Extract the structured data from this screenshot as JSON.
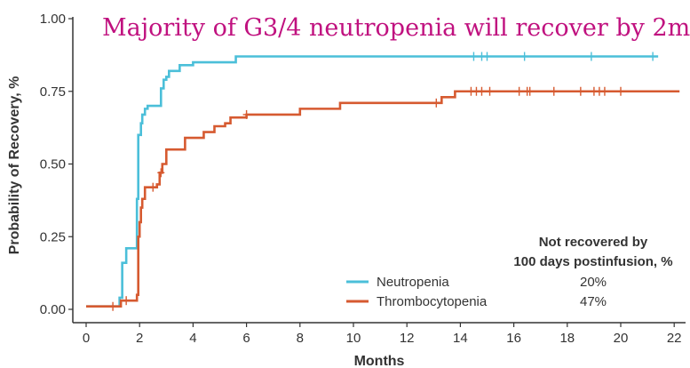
{
  "chart_data": {
    "type": "line",
    "step": true,
    "title": "Majority of G3/4 neutropenia will recover by 2m",
    "xlabel": "Months",
    "ylabel": "Probability of Recovery, %",
    "xlim": [
      0,
      22.5
    ],
    "ylim": [
      0,
      1.0
    ],
    "xticks": [
      0,
      2,
      4,
      6,
      8,
      10,
      12,
      14,
      16,
      18,
      20,
      22
    ],
    "yticks": [
      "0.00",
      "0.25",
      "0.50",
      "0.75",
      "1.00"
    ],
    "grid": false,
    "legend": {
      "position": "bottom-right",
      "header_line1": "Not recovered by",
      "header_line2": "100 days postinfusion, %"
    },
    "series": [
      {
        "name": "Neutropenia",
        "not_recovered_label": "20%",
        "color": "#4bbfd9",
        "points": [
          [
            0,
            0.01
          ],
          [
            1.2,
            0.01
          ],
          [
            1.25,
            0.04
          ],
          [
            1.35,
            0.16
          ],
          [
            1.5,
            0.21
          ],
          [
            1.85,
            0.21
          ],
          [
            1.9,
            0.38
          ],
          [
            1.95,
            0.6
          ],
          [
            2.05,
            0.64
          ],
          [
            2.1,
            0.67
          ],
          [
            2.2,
            0.69
          ],
          [
            2.3,
            0.7
          ],
          [
            2.8,
            0.76
          ],
          [
            2.9,
            0.79
          ],
          [
            3.0,
            0.8
          ],
          [
            3.1,
            0.82
          ],
          [
            3.5,
            0.84
          ],
          [
            4.0,
            0.85
          ],
          [
            5.6,
            0.87
          ],
          [
            21.4,
            0.87
          ]
        ],
        "censor": [
          14.5,
          14.8,
          15.0,
          16.4,
          18.9,
          21.2
        ]
      },
      {
        "name": "Thrombocytopenia",
        "not_recovered_label": "47%",
        "color": "#d65a30",
        "points": [
          [
            0,
            0.01
          ],
          [
            1.2,
            0.01
          ],
          [
            1.3,
            0.03
          ],
          [
            1.8,
            0.03
          ],
          [
            1.9,
            0.05
          ],
          [
            1.95,
            0.25
          ],
          [
            2.0,
            0.3
          ],
          [
            2.05,
            0.35
          ],
          [
            2.1,
            0.38
          ],
          [
            2.2,
            0.42
          ],
          [
            2.55,
            0.42
          ],
          [
            2.65,
            0.43
          ],
          [
            2.75,
            0.47
          ],
          [
            2.85,
            0.5
          ],
          [
            3.0,
            0.55
          ],
          [
            3.7,
            0.59
          ],
          [
            4.4,
            0.61
          ],
          [
            4.8,
            0.63
          ],
          [
            5.2,
            0.64
          ],
          [
            5.4,
            0.66
          ],
          [
            6.0,
            0.67
          ],
          [
            8.0,
            0.69
          ],
          [
            9.5,
            0.71
          ],
          [
            13.3,
            0.73
          ],
          [
            13.8,
            0.75
          ],
          [
            22.2,
            0.75
          ]
        ],
        "censor": [
          1.0,
          1.5,
          2.5,
          2.8,
          6.0,
          13.1,
          14.4,
          14.6,
          14.8,
          15.1,
          16.2,
          16.5,
          16.6,
          17.5,
          18.5,
          19.0,
          19.2,
          19.4,
          20.0
        ]
      }
    ]
  }
}
